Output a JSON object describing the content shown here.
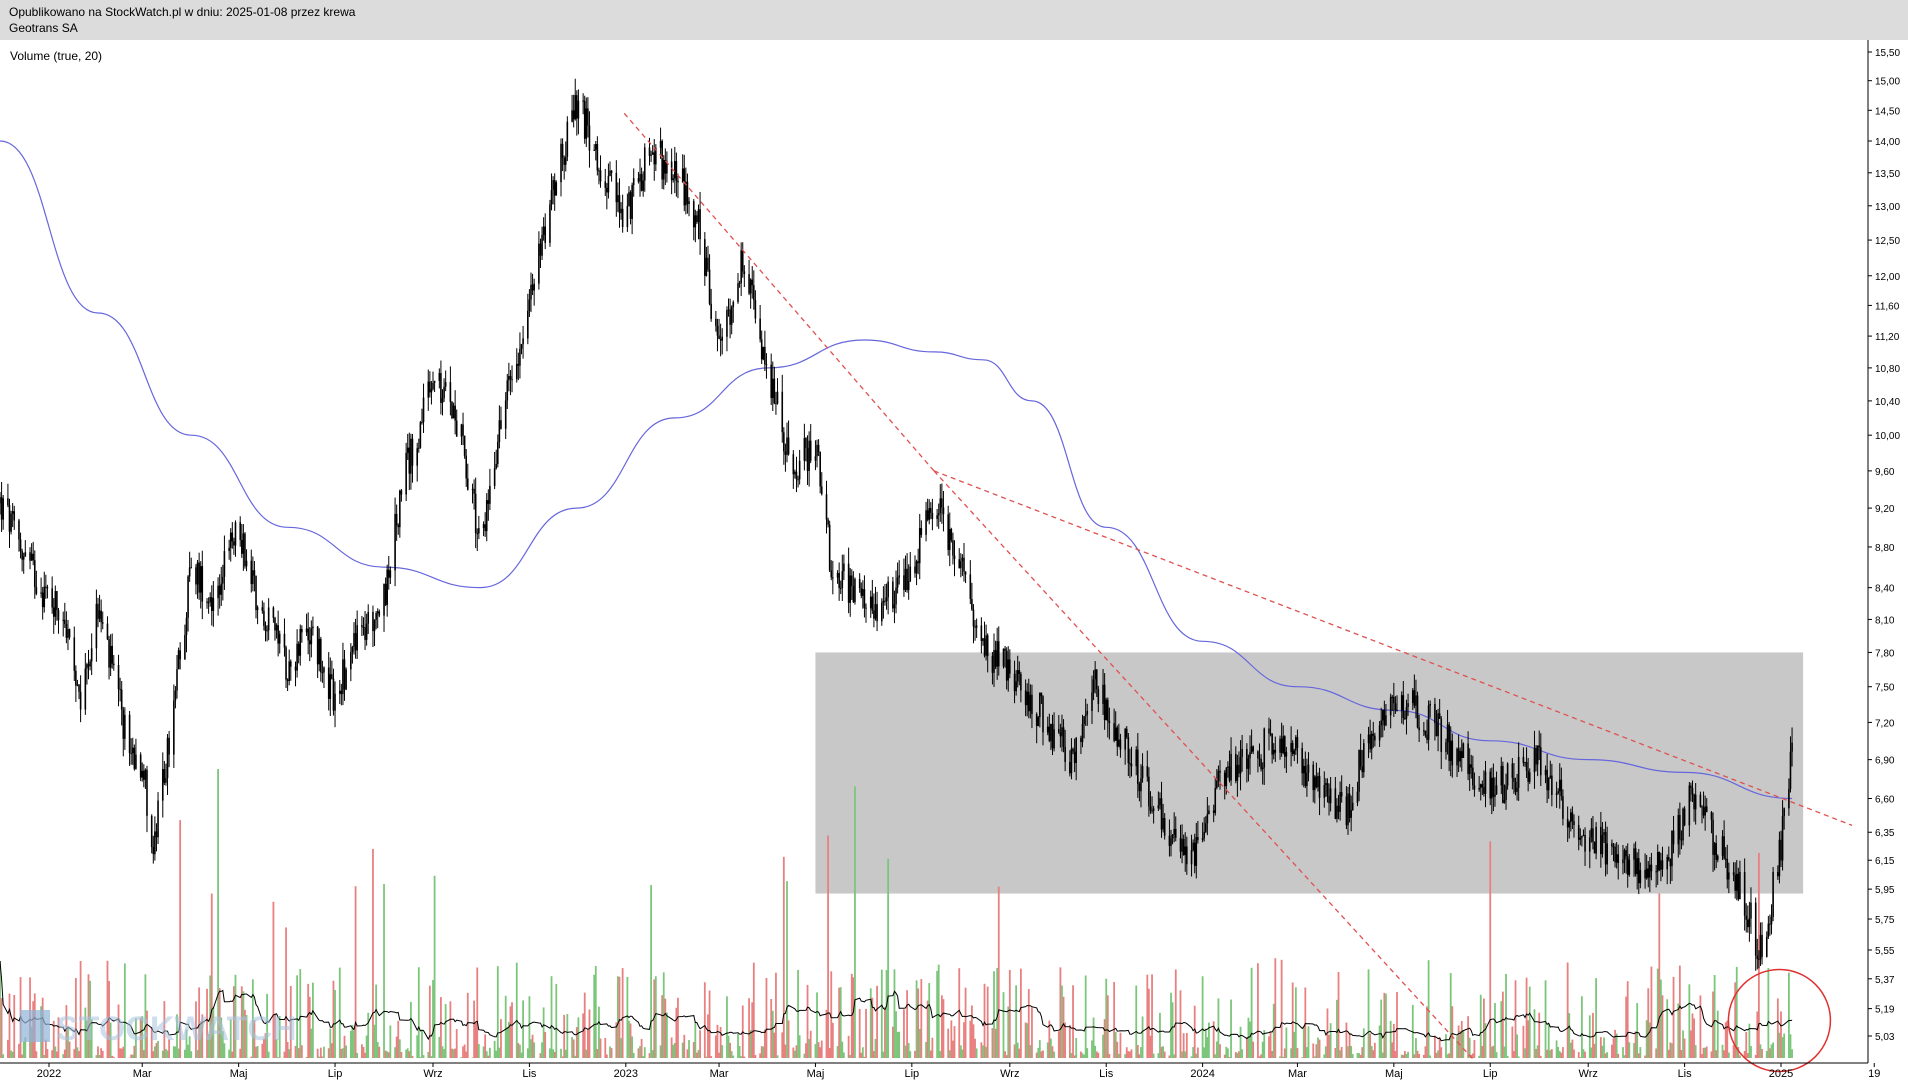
{
  "header": {
    "published": "Opublikowano na StockWatch.pl w dniu: 2025-01-08 przez krewa",
    "company": "Geotrans SA"
  },
  "volume_label": "Volume (true, 20)",
  "watermark": "STOCKWATCH",
  "chart_data": {
    "type": "candlestick",
    "title": "Geotrans SA",
    "indicator": "Volume (true, 20)",
    "y_axis": {
      "scale": "log",
      "ticks": [
        "15,50",
        "15,00",
        "14,50",
        "14,00",
        "13,50",
        "13,00",
        "12,50",
        "12,00",
        "11,60",
        "11,20",
        "10,80",
        "10,40",
        "10,00",
        "9,60",
        "9,20",
        "8,80",
        "8,40",
        "8,10",
        "7,80",
        "7,50",
        "7,20",
        "6,90",
        "6,60",
        "6,35",
        "6,15",
        "5,95",
        "5,75",
        "5,55",
        "5,37",
        "5,19",
        "5,03"
      ],
      "tick_values": [
        15.5,
        15.0,
        14.5,
        14.0,
        13.5,
        13.0,
        12.5,
        12.0,
        11.6,
        11.2,
        10.8,
        10.4,
        10.0,
        9.6,
        9.2,
        8.8,
        8.4,
        8.1,
        7.8,
        7.5,
        7.2,
        6.9,
        6.6,
        6.35,
        6.15,
        5.95,
        5.75,
        5.55,
        5.37,
        5.19,
        5.03
      ]
    },
    "x_axis": {
      "ticks": [
        "2022",
        "Mar",
        "Maj",
        "Lip",
        "Wrz",
        "Lis",
        "2023",
        "Mar",
        "Maj",
        "Lip",
        "Wrz",
        "Lis",
        "2024",
        "Mar",
        "Maj",
        "Lip",
        "Wrz",
        "Lis",
        "2025",
        "19"
      ],
      "tick_dates": [
        "2022-01-01",
        "2022-03-01",
        "2022-05-01",
        "2022-07-01",
        "2022-09-01",
        "2022-11-01",
        "2023-01-01",
        "2023-03-01",
        "2023-05-01",
        "2023-07-01",
        "2023-09-01",
        "2023-11-01",
        "2024-01-01",
        "2024-03-01",
        "2024-05-01",
        "2024-07-01",
        "2024-09-01",
        "2024-11-01",
        "2025-01-01",
        "2025-03-01"
      ]
    },
    "price_path": [
      [
        "2021-12-01",
        9.25
      ],
      [
        "2021-12-20",
        8.6
      ],
      [
        "2022-01-01",
        8.3
      ],
      [
        "2022-01-10",
        8.2
      ],
      [
        "2022-01-20",
        7.3
      ],
      [
        "2022-02-01",
        8.2
      ],
      [
        "2022-02-20",
        7.0
      ],
      [
        "2022-03-01",
        6.9
      ],
      [
        "2022-03-08",
        6.2
      ],
      [
        "2022-03-20",
        7.2
      ],
      [
        "2022-04-01",
        8.6
      ],
      [
        "2022-04-15",
        8.3
      ],
      [
        "2022-05-01",
        9.0
      ],
      [
        "2022-05-15",
        8.2
      ],
      [
        "2022-06-01",
        7.7
      ],
      [
        "2022-06-15",
        8.0
      ],
      [
        "2022-07-01",
        7.4
      ],
      [
        "2022-07-15",
        7.9
      ],
      [
        "2022-08-01",
        8.3
      ],
      [
        "2022-08-15",
        9.6
      ],
      [
        "2022-09-01",
        10.6
      ],
      [
        "2022-09-15",
        10.3
      ],
      [
        "2022-10-01",
        8.8
      ],
      [
        "2022-10-15",
        10.3
      ],
      [
        "2022-11-01",
        11.6
      ],
      [
        "2022-11-15",
        13.2
      ],
      [
        "2022-12-01",
        14.6
      ],
      [
        "2022-12-15",
        13.7
      ],
      [
        "2023-01-01",
        12.8
      ],
      [
        "2023-01-15",
        13.8
      ],
      [
        "2023-02-01",
        13.6
      ],
      [
        "2023-02-15",
        12.8
      ],
      [
        "2023-03-01",
        11.0
      ],
      [
        "2023-03-15",
        12.2
      ],
      [
        "2023-04-01",
        10.8
      ],
      [
        "2023-04-15",
        9.6
      ],
      [
        "2023-05-01",
        9.9
      ],
      [
        "2023-05-10",
        8.7
      ],
      [
        "2023-06-01",
        8.2
      ],
      [
        "2023-06-20",
        8.3
      ],
      [
        "2023-07-01",
        8.6
      ],
      [
        "2023-07-15",
        9.3
      ],
      [
        "2023-08-01",
        8.6
      ],
      [
        "2023-08-15",
        7.9
      ],
      [
        "2023-09-01",
        7.6
      ],
      [
        "2023-09-20",
        7.3
      ],
      [
        "2023-10-10",
        6.9
      ],
      [
        "2023-10-25",
        7.5
      ],
      [
        "2023-11-10",
        7.1
      ],
      [
        "2023-11-25",
        6.7
      ],
      [
        "2023-12-10",
        6.4
      ],
      [
        "2023-12-25",
        6.1
      ],
      [
        "2024-01-10",
        6.7
      ],
      [
        "2024-01-25",
        6.9
      ],
      [
        "2024-02-10",
        7.0
      ],
      [
        "2024-02-25",
        7.05
      ],
      [
        "2024-03-15",
        6.6
      ],
      [
        "2024-04-01",
        6.5
      ],
      [
        "2024-04-15",
        7.1
      ],
      [
        "2024-05-01",
        7.4
      ],
      [
        "2024-05-15",
        7.3
      ],
      [
        "2024-06-01",
        7.1
      ],
      [
        "2024-06-20",
        6.8
      ],
      [
        "2024-07-10",
        6.7
      ],
      [
        "2024-08-01",
        6.9
      ],
      [
        "2024-08-15",
        6.6
      ],
      [
        "2024-09-01",
        6.3
      ],
      [
        "2024-09-20",
        6.2
      ],
      [
        "2024-10-10",
        6.05
      ],
      [
        "2024-10-25",
        6.25
      ],
      [
        "2024-11-05",
        6.6
      ],
      [
        "2024-11-20",
        6.3
      ],
      [
        "2024-12-05",
        6.0
      ],
      [
        "2024-12-20",
        5.5
      ],
      [
        "2025-01-03",
        6.4
      ],
      [
        "2025-01-08",
        6.95
      ]
    ],
    "moving_average_path": [
      [
        "2021-12-01",
        14.0
      ],
      [
        "2022-02-01",
        11.5
      ],
      [
        "2022-04-01",
        10.0
      ],
      [
        "2022-06-01",
        9.0
      ],
      [
        "2022-08-01",
        8.6
      ],
      [
        "2022-10-01",
        8.4
      ],
      [
        "2022-12-01",
        9.2
      ],
      [
        "2023-02-01",
        10.2
      ],
      [
        "2023-04-01",
        10.8
      ],
      [
        "2023-06-01",
        11.15
      ],
      [
        "2023-07-15",
        11.0
      ],
      [
        "2023-08-15",
        10.9
      ],
      [
        "2023-09-15",
        10.4
      ],
      [
        "2023-11-01",
        9.0
      ],
      [
        "2024-01-01",
        7.9
      ],
      [
        "2024-03-01",
        7.5
      ],
      [
        "2024-05-01",
        7.3
      ],
      [
        "2024-07-01",
        7.05
      ],
      [
        "2024-09-01",
        6.9
      ],
      [
        "2024-11-01",
        6.8
      ],
      [
        "2025-01-08",
        6.6
      ]
    ],
    "trendlines": [
      {
        "style": "dashed",
        "color": "#e05050",
        "from": [
          "2022-12-31",
          14.45
        ],
        "to": [
          "2023-07-15",
          9.6
        ]
      },
      {
        "style": "dashed",
        "color": "#e05050",
        "from": [
          "2023-07-15",
          9.6
        ],
        "to": [
          "2024-06-20",
          4.9
        ]
      },
      {
        "style": "dashed",
        "color": "#e05050",
        "from": [
          "2023-07-15",
          9.6
        ],
        "to": [
          "2025-02-15",
          6.4
        ]
      }
    ],
    "range_box": {
      "from": "2023-05-01",
      "to": "2025-01-15",
      "top": 7.8,
      "bottom": 5.92,
      "color": "#c8c8c8"
    },
    "highlight_circle": {
      "center": [
        "2024-12-31",
        5.12
      ],
      "color": "#e03030"
    },
    "volume_color_up": "#7cc67c",
    "volume_color_down": "#e88080",
    "ma_color": "#6666dd",
    "candle_color": "#000000",
    "volume_ma_color": "#000000"
  }
}
